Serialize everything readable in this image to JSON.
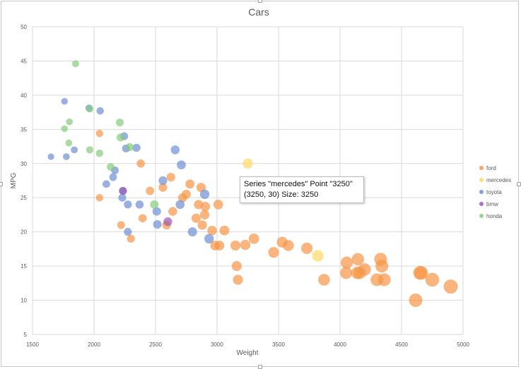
{
  "chart_data": {
    "type": "scatter",
    "title": "Cars",
    "xlabel": "Weight",
    "ylabel": "MPG",
    "xlim": [
      1500,
      5000
    ],
    "ylim": [
      5,
      50
    ],
    "xticks": [
      1500,
      2000,
      2500,
      3000,
      3500,
      4000,
      4500,
      5000
    ],
    "yticks": [
      5,
      10,
      15,
      20,
      25,
      30,
      35,
      40,
      45,
      50
    ],
    "grid": true,
    "legend_position": "right",
    "bubble_size_by": "x",
    "series": [
      {
        "name": "ford",
        "color": "#f79646",
        "points": [
          [
            2045,
            34.4
          ],
          [
            2045,
            25
          ],
          [
            2220,
            21
          ],
          [
            2300,
            19
          ],
          [
            2380,
            30
          ],
          [
            2395,
            22
          ],
          [
            2455,
            26
          ],
          [
            2560,
            26.5
          ],
          [
            2590,
            21
          ],
          [
            2625,
            28
          ],
          [
            2640,
            23
          ],
          [
            2720,
            25
          ],
          [
            2750,
            25.5
          ],
          [
            2780,
            27
          ],
          [
            2830,
            22
          ],
          [
            2850,
            24
          ],
          [
            2870,
            26.5
          ],
          [
            2880,
            21
          ],
          [
            2900,
            22.5
          ],
          [
            2905,
            23.7
          ],
          [
            2960,
            20.2
          ],
          [
            2985,
            18
          ],
          [
            3010,
            24
          ],
          [
            3020,
            18
          ],
          [
            3060,
            20.2
          ],
          [
            3150,
            18
          ],
          [
            3160,
            15
          ],
          [
            3170,
            13
          ],
          [
            3230,
            18.1
          ],
          [
            3300,
            19
          ],
          [
            3460,
            17
          ],
          [
            3530,
            18.5
          ],
          [
            3580,
            18
          ],
          [
            3730,
            17.6
          ],
          [
            3870,
            13
          ],
          [
            4050,
            14
          ],
          [
            4055,
            15.5
          ],
          [
            4140,
            14
          ],
          [
            4145,
            16
          ],
          [
            4160,
            14
          ],
          [
            4200,
            14.5
          ],
          [
            4300,
            13
          ],
          [
            4330,
            16
          ],
          [
            4340,
            15
          ],
          [
            4360,
            13
          ],
          [
            4615,
            10
          ],
          [
            4650,
            14
          ],
          [
            4660,
            14
          ],
          [
            4750,
            13
          ],
          [
            4900,
            12
          ]
        ]
      },
      {
        "name": "mercedes",
        "color": "#ffd966",
        "points": [
          [
            3250,
            30
          ],
          [
            3530,
            25.5
          ],
          [
            3820,
            16.5
          ]
        ]
      },
      {
        "name": "toyota",
        "color": "#6f8fd4",
        "points": [
          [
            1650,
            31
          ],
          [
            1760,
            39.1
          ],
          [
            1775,
            31
          ],
          [
            1840,
            32
          ],
          [
            1960,
            38.1
          ],
          [
            2050,
            37.7
          ],
          [
            2100,
            27
          ],
          [
            2155,
            28
          ],
          [
            2170,
            29
          ],
          [
            2230,
            25
          ],
          [
            2235,
            26
          ],
          [
            2245,
            34
          ],
          [
            2260,
            32.2
          ],
          [
            2275,
            20
          ],
          [
            2275,
            24
          ],
          [
            2345,
            32.3
          ],
          [
            2370,
            24
          ],
          [
            2510,
            23
          ],
          [
            2515,
            21.1
          ],
          [
            2560,
            27.5
          ],
          [
            2660,
            32
          ],
          [
            2700,
            24
          ],
          [
            2710,
            29.8
          ],
          [
            2800,
            20
          ],
          [
            2900,
            25.5
          ],
          [
            2935,
            19
          ]
        ]
      },
      {
        "name": "bmw",
        "color": "#9b59b6",
        "points": [
          [
            2235,
            26
          ],
          [
            2600,
            21.5
          ]
        ]
      },
      {
        "name": "honda",
        "color": "#84cc7c",
        "points": [
          [
            1760,
            35.1
          ],
          [
            1795,
            33
          ],
          [
            1800,
            36.1
          ],
          [
            1850,
            44.6
          ],
          [
            1965,
            32
          ],
          [
            1965,
            38
          ],
          [
            2045,
            31.5
          ],
          [
            2135,
            29.5
          ],
          [
            2210,
            36
          ],
          [
            2215,
            33.8
          ],
          [
            2290,
            32.4
          ],
          [
            2490,
            24
          ]
        ]
      }
    ]
  },
  "tooltip": {
    "line1": "Series \"mercedes\" Point \"3250\"",
    "line2": "(3250, 30) Size: 3250"
  }
}
